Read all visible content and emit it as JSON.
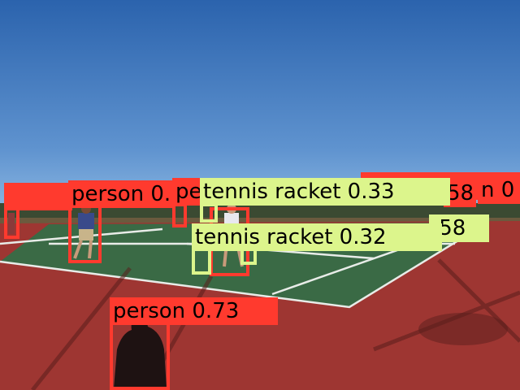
{
  "colors": {
    "person": "#ff3a2e",
    "tennis_racket": "#dcf58c"
  },
  "detections": [
    {
      "label": "person 0.51",
      "class": "person"
    },
    {
      "label": "person 0.73",
      "class": "person"
    },
    {
      "label": "pe",
      "class": "person"
    },
    {
      "label": "58",
      "class": "person"
    },
    {
      "label": "n 0",
      "class": "person"
    },
    {
      "label": "tennis racket 0.33",
      "class": "tennis_racket"
    },
    {
      "label": "tennis racket 0.32",
      "class": "tennis_racket"
    },
    {
      "label": ".58",
      "class": "tennis_racket"
    }
  ]
}
